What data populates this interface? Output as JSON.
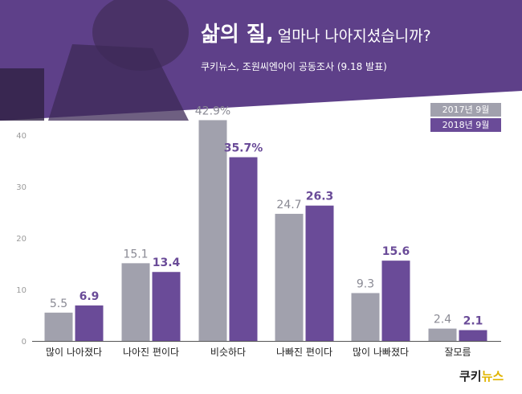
{
  "header": {
    "title_bold": "삶의 질,",
    "title_rest": "얼마나 나아지셨습니까?",
    "subtitle": "쿠키뉴스, 조원씨엔아이 공동조사 (9.18 발표)"
  },
  "logo": {
    "text_main": "쿠키",
    "text_accent": "뉴스"
  },
  "colors": {
    "banner": "#5e4089",
    "series_2017": "#a1a1ad",
    "series_2018": "#6a4b98",
    "label_2017": "#8a8a94",
    "label_2018": "#6a4b98"
  },
  "chart_data": {
    "type": "bar",
    "categories": [
      "많이 나아졌다",
      "나아진 편이다",
      "비슷하다",
      "나빠진 편이다",
      "많이 나빠졌다",
      "잘모름"
    ],
    "series": [
      {
        "name": "2017년 9월",
        "values": [
          5.5,
          15.1,
          42.9,
          24.7,
          9.3,
          2.4
        ],
        "labels": [
          "5.5",
          "15.1",
          "42.9%",
          "24.7",
          "9.3",
          "2.4"
        ]
      },
      {
        "name": "2018년 9월",
        "values": [
          6.9,
          13.4,
          35.7,
          26.3,
          15.6,
          2.1
        ],
        "labels": [
          "6.9",
          "13.4",
          "35.7%",
          "26.3",
          "15.6",
          "2.1"
        ]
      }
    ],
    "y_ticks": [
      "0",
      "10",
      "20",
      "30",
      "40"
    ],
    "ylim": [
      0,
      40
    ],
    "grid": false,
    "legend_position": "top-right"
  }
}
